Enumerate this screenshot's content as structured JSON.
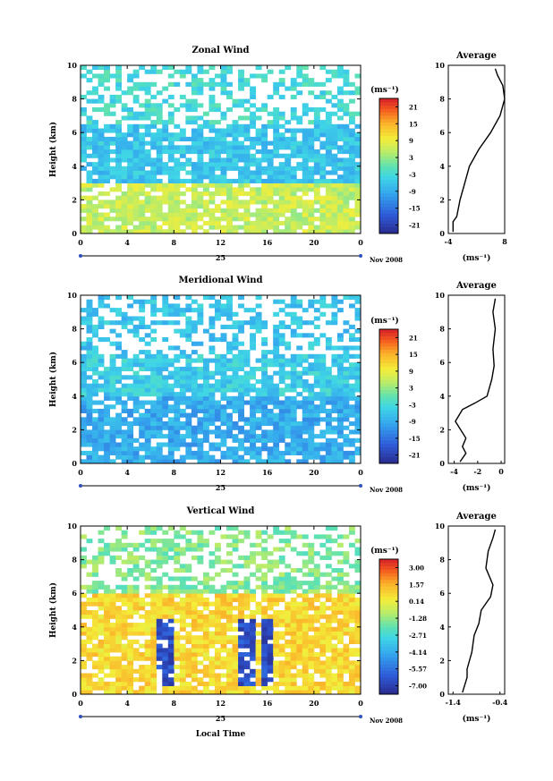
{
  "figure": {
    "xlabel": "Local Time",
    "x_ticks": [
      "0",
      "4",
      "8",
      "12",
      "16",
      "20",
      "0"
    ],
    "date_day": "25",
    "date_month": "Nov 2008",
    "ylabel": "Height (km)",
    "y_ticks": [
      "0",
      "2",
      "4",
      "6",
      "8",
      "10"
    ]
  },
  "chart_data": [
    {
      "type": "heatmap",
      "title": "Zonal Wind",
      "xlabel": "",
      "ylabel": "Height (km)",
      "xlim": [
        0,
        24
      ],
      "ylim": [
        0,
        10
      ],
      "colorbar": {
        "unit": "(ms⁻¹)",
        "ticks": [
          "21",
          "15",
          "9",
          "3",
          "-3",
          "-9",
          "-15",
          "-21"
        ],
        "range": [
          -24,
          24
        ]
      },
      "approx_field": [
        {
          "height_range": [
            0,
            3
          ],
          "value": 6
        },
        {
          "height_range": [
            3,
            6.5
          ],
          "value": -6
        },
        {
          "height_range": [
            6.5,
            10
          ],
          "value": -3
        }
      ],
      "profile": {
        "title": "Average",
        "xlabel": "(ms⁻¹)",
        "x_ticks": [
          "-4",
          "8"
        ],
        "xlim": [
          -4,
          8
        ],
        "x": [
          -3,
          -3,
          -2.2,
          -1.5,
          -0.5,
          0.5,
          2.5,
          5,
          7,
          8,
          7.6,
          6.5,
          6
        ],
        "y": [
          0.1,
          0.7,
          1.0,
          2.0,
          3.0,
          4.0,
          5.0,
          6.0,
          7.0,
          8.0,
          8.8,
          9.4,
          9.8
        ]
      }
    },
    {
      "type": "heatmap",
      "title": "Meridional Wind",
      "xlabel": "",
      "ylabel": "Height (km)",
      "xlim": [
        0,
        24
      ],
      "ylim": [
        0,
        10
      ],
      "colorbar": {
        "unit": "(ms⁻¹)",
        "ticks": [
          "21",
          "15",
          "9",
          "3",
          "-3",
          "-9",
          "-15",
          "-21"
        ],
        "range": [
          -24,
          24
        ]
      },
      "approx_field": [
        {
          "height_range": [
            0,
            4
          ],
          "value": -9
        },
        {
          "height_range": [
            4,
            6.5
          ],
          "value": -5
        },
        {
          "height_range": [
            6.5,
            10
          ],
          "value": -6
        }
      ],
      "profile": {
        "title": "Average",
        "xlabel": "(ms⁻¹)",
        "x_ticks": [
          "-4",
          "-2",
          "0"
        ],
        "xlim": [
          -4.5,
          0.3
        ],
        "x": [
          -3.5,
          -3,
          -3.3,
          -3,
          -3.9,
          -3.3,
          -2.2,
          -1.2,
          -0.8,
          -0.6,
          -0.7,
          -0.5,
          -0.7,
          -0.5
        ],
        "y": [
          0.1,
          0.6,
          1.0,
          1.5,
          2.5,
          3.2,
          3.6,
          4.0,
          5.0,
          5.8,
          6.8,
          8.0,
          9.0,
          9.8
        ]
      }
    },
    {
      "type": "heatmap",
      "title": "Vertical Wind",
      "xlabel": "Local Time",
      "ylabel": "Height (km)",
      "xlim": [
        0,
        24
      ],
      "ylim": [
        0,
        10
      ],
      "colorbar": {
        "unit": "(ms⁻¹)",
        "ticks": [
          "3.00",
          "1.57",
          "0.14",
          "-1.28",
          "-2.71",
          "-4.14",
          "-5.57",
          "-7.00"
        ],
        "range": [
          -7.7,
          3.7
        ]
      },
      "approx_field": [
        {
          "height_range": [
            0,
            6
          ],
          "value": 0.8
        },
        {
          "height_range": [
            0.5,
            4.5
          ],
          "value": -6.5,
          "time_bands": [
            [
              6.5,
              7.8
            ],
            [
              13.5,
              14.8
            ],
            [
              15.5,
              16.4
            ]
          ]
        },
        {
          "height_range": [
            6,
            10
          ],
          "value": -1.5
        }
      ],
      "profile": {
        "title": "Average",
        "xlabel": "(ms⁻¹)",
        "x_ticks": [
          "-1.4",
          "-0.4"
        ],
        "xlim": [
          -1.5,
          -0.3
        ],
        "x": [
          -1.2,
          -1.1,
          -1.1,
          -1.0,
          -0.95,
          -0.85,
          -0.8,
          -0.6,
          -0.55,
          -0.7,
          -0.65,
          -0.55,
          -0.5
        ],
        "y": [
          0.1,
          1.0,
          1.5,
          2.5,
          3.5,
          4.2,
          5.0,
          5.8,
          6.5,
          7.5,
          8.5,
          9.3,
          9.8
        ]
      }
    }
  ]
}
